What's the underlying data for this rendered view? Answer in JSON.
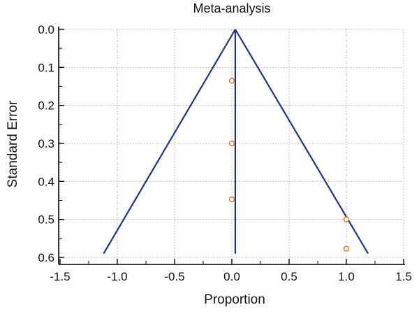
{
  "chart_data": {
    "type": "scatter",
    "title": "Meta-analysis",
    "xlabel": "Proportion",
    "ylabel": "Standard Error",
    "xlim": [
      -1.5,
      1.5
    ],
    "ylim": [
      0.0,
      0.6
    ],
    "y_inverted": true,
    "grid": true,
    "x_ticks": [
      "-1.5",
      "-1.0",
      "-0.5",
      "0.0",
      "0.5",
      "1.0",
      "1.5"
    ],
    "y_ticks": [
      "0.0",
      "0.1",
      "0.2",
      "0.3",
      "0.4",
      "0.5",
      "0.6"
    ],
    "points": [
      {
        "x": 0.0,
        "y": 0.135
      },
      {
        "x": 0.0,
        "y": 0.3
      },
      {
        "x": 0.0,
        "y": 0.447
      },
      {
        "x": 1.0,
        "y": 0.5
      },
      {
        "x": 1.0,
        "y": 0.577
      }
    ],
    "pooled_estimate": 0.03,
    "funnel_apex": [
      0.03,
      0.0
    ],
    "funnel_left_end": [
      -1.12,
      0.59
    ],
    "funnel_right_end": [
      1.19,
      0.59
    ],
    "colors": {
      "funnel": "#22318f",
      "points": "#e07a2a",
      "grid": "#9a9a9a"
    }
  }
}
